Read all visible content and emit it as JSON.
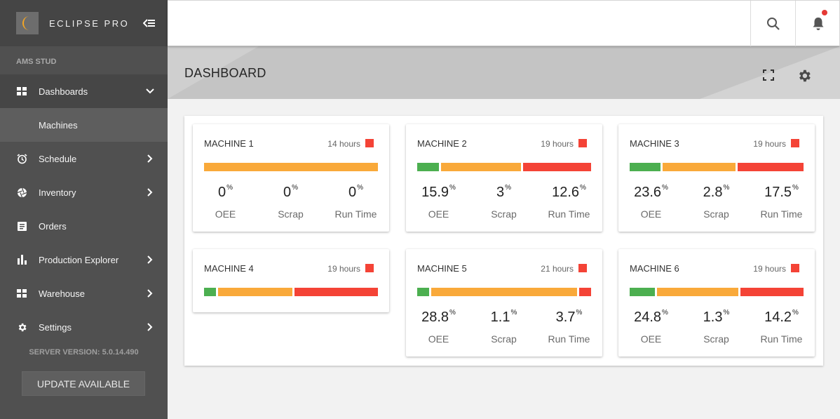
{
  "sidebar": {
    "brand": "ECLIPSE PRO",
    "section_label": "AMS STUD",
    "items": [
      {
        "key": "dashboards",
        "label": "Dashboards",
        "icon": "grid-icon",
        "chevron": "down",
        "active": true
      },
      {
        "key": "machines",
        "label": "Machines",
        "sub": true
      },
      {
        "key": "schedule",
        "label": "Schedule",
        "icon": "alarm-clock-icon",
        "chevron": "right"
      },
      {
        "key": "inventory",
        "label": "Inventory",
        "icon": "aperture-icon",
        "chevron": "right"
      },
      {
        "key": "orders",
        "label": "Orders",
        "icon": "list-doc-icon"
      },
      {
        "key": "production-explorer",
        "label": "Production Explorer",
        "icon": "bar-chart-icon",
        "chevron": "right"
      },
      {
        "key": "warehouse",
        "label": "Warehouse",
        "icon": "grid-icon",
        "chevron": "right"
      },
      {
        "key": "settings",
        "label": "Settings",
        "icon": "gear-icon",
        "chevron": "right"
      }
    ],
    "server_version": "SERVER VERSION: 5.0.14.490",
    "update_button": "UPDATE AVAILABLE"
  },
  "header": {
    "title": "DASHBOARD"
  },
  "colors": {
    "green": "#4caf50",
    "orange": "#f9a93a",
    "red": "#f44336",
    "sidebar": "#505050"
  },
  "machines": [
    {
      "name": "MACHINE 1",
      "hours": "14 hours",
      "status_color": "#f44336",
      "segments": [
        {
          "color": "#f9a93a",
          "fraction": 1.0
        }
      ],
      "oee": "0",
      "scrap": "0",
      "run_time": "0"
    },
    {
      "name": "MACHINE 2",
      "hours": "19 hours",
      "status_color": "#f44336",
      "segments": [
        {
          "color": "#4caf50",
          "fraction": 0.13
        },
        {
          "color": "#f9a93a",
          "fraction": 0.47
        },
        {
          "color": "#f44336",
          "fraction": 0.4
        }
      ],
      "oee": "15.9",
      "scrap": "3",
      "run_time": "12.6"
    },
    {
      "name": "MACHINE 3",
      "hours": "19 hours",
      "status_color": "#f44336",
      "segments": [
        {
          "color": "#4caf50",
          "fraction": 0.18
        },
        {
          "color": "#f9a93a",
          "fraction": 0.43
        },
        {
          "color": "#f44336",
          "fraction": 0.39
        }
      ],
      "oee": "23.6",
      "scrap": "2.8",
      "run_time": "17.5"
    },
    {
      "name": "MACHINE 4",
      "hours": "19 hours",
      "status_color": "#f44336",
      "segments": [
        {
          "color": "#4caf50",
          "fraction": 0.07
        },
        {
          "color": "#f9a93a",
          "fraction": 0.44
        },
        {
          "color": "#f44336",
          "fraction": 0.49
        }
      ]
    },
    {
      "name": "MACHINE 5",
      "hours": "21 hours",
      "status_color": "#f44336",
      "segments": [
        {
          "color": "#4caf50",
          "fraction": 0.07
        },
        {
          "color": "#f9a93a",
          "fraction": 0.86
        },
        {
          "color": "#f44336",
          "fraction": 0.07
        }
      ],
      "oee": "28.8",
      "scrap": "1.1",
      "run_time": "3.7"
    },
    {
      "name": "MACHINE 6",
      "hours": "19 hours",
      "status_color": "#f44336",
      "segments": [
        {
          "color": "#4caf50",
          "fraction": 0.15
        },
        {
          "color": "#f9a93a",
          "fraction": 0.48
        },
        {
          "color": "#f44336",
          "fraction": 0.37
        }
      ],
      "oee": "24.8",
      "scrap": "1.3",
      "run_time": "14.2"
    }
  ],
  "metric_labels": {
    "oee": "OEE",
    "scrap": "Scrap",
    "run_time": "Run Time"
  },
  "percent_sign": "%"
}
